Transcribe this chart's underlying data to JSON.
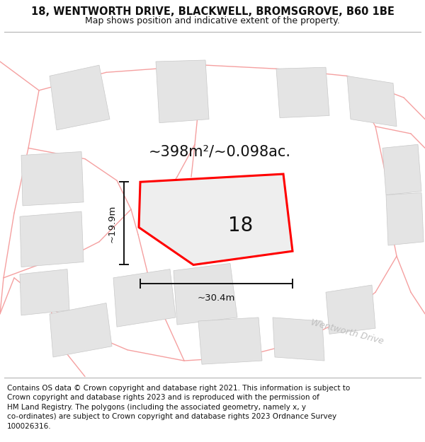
{
  "title": "18, WENTWORTH DRIVE, BLACKWELL, BROMSGROVE, B60 1BE",
  "subtitle": "Map shows position and indicative extent of the property.",
  "footer": "Contains OS data © Crown copyright and database right 2021. This information is subject to\nCrown copyright and database rights 2023 and is reproduced with the permission of\nHM Land Registry. The polygons (including the associated geometry, namely x, y\nco-ordinates) are subject to Crown copyright and database rights 2023 Ordnance Survey\n100026316.",
  "area_label": "~398m²/~0.098ac.",
  "property_number": "18",
  "dim_width": "~30.4m",
  "dim_height": "~19.9m",
  "road_label": "Wentworth Drive",
  "bg_color": "#ffffff",
  "map_bg": "#ffffff",
  "plot_color_fill": "#eeeeee",
  "plot_color_edge": "#ff0000",
  "other_plot_fill": "#e4e4e4",
  "other_plot_edge": "#c8c8c8",
  "road_color": "#f5a0a0",
  "dim_color": "#111111",
  "text_color": "#111111",
  "road_text_color": "#c0c0c0",
  "title_fontsize": 10.5,
  "subtitle_fontsize": 9,
  "footer_fontsize": 7.5,
  "area_label_fontsize": 15,
  "number_fontsize": 20,
  "dim_fontsize": 9.5,
  "road_label_fontsize": 9
}
